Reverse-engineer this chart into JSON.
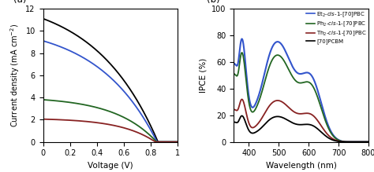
{
  "panel_a": {
    "xlabel": "Voltage (V)",
    "xlim": [
      0,
      1.0
    ],
    "ylim": [
      0,
      12
    ],
    "yticks": [
      0,
      2,
      4,
      6,
      8,
      10,
      12
    ],
    "xticks": [
      0,
      0.2,
      0.4,
      0.6,
      0.8,
      1
    ],
    "xticklabels": [
      "0",
      "0.2",
      "0.4",
      "0.6",
      "0.8",
      "1"
    ],
    "curves": [
      {
        "color": "#000000",
        "jsc": 11.1,
        "voc": 0.855,
        "n": 18.0
      },
      {
        "color": "#3355cc",
        "jsc": 9.1,
        "voc": 0.848,
        "n": 17.0
      },
      {
        "color": "#226622",
        "jsc": 3.8,
        "voc": 0.845,
        "n": 12.0
      },
      {
        "color": "#882222",
        "jsc": 2.05,
        "voc": 0.835,
        "n": 10.0
      }
    ]
  },
  "panel_b": {
    "xlabel": "Wavelength (nm)",
    "ylabel": "IPCE (%)",
    "xlim": [
      350,
      800
    ],
    "ylim": [
      0,
      100
    ],
    "xticks": [
      400,
      500,
      600,
      700,
      800
    ],
    "yticks": [
      0,
      20,
      40,
      60,
      80,
      100
    ],
    "legend": [
      {
        "color": "#3355cc"
      },
      {
        "color": "#226622"
      },
      {
        "color": "#882222"
      },
      {
        "color": "#000000"
      }
    ]
  }
}
